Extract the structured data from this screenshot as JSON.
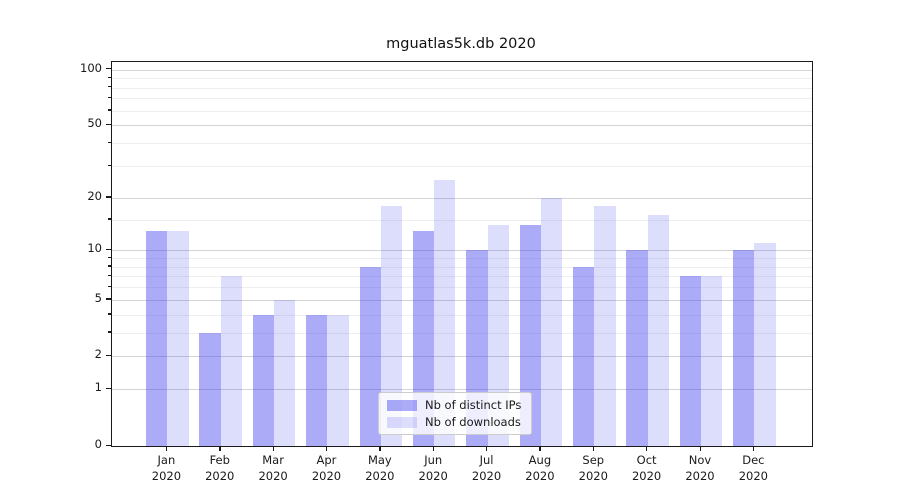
{
  "title": "mguatlas5k.db 2020",
  "chart_data": {
    "type": "bar",
    "title": "mguatlas5k.db 2020",
    "categories": [
      "Jan",
      "Feb",
      "Mar",
      "Apr",
      "May",
      "Jun",
      "Jul",
      "Aug",
      "Sep",
      "Oct",
      "Nov",
      "Dec"
    ],
    "category_year": "2020",
    "series": [
      {
        "name": "Nb of distinct IPs",
        "color": "rgba(68,68,238,0.45)",
        "values": [
          13,
          3,
          4,
          4,
          8,
          13,
          10,
          14,
          8,
          10,
          7,
          10
        ]
      },
      {
        "name": "Nb of downloads",
        "color": "rgba(68,68,238,0.18)",
        "values": [
          13,
          7,
          5,
          4,
          18,
          25,
          14,
          20,
          18,
          16,
          7,
          11
        ]
      }
    ],
    "y_axis": {
      "scale": "log1p",
      "major_ticks": [
        100,
        50,
        20,
        10,
        5,
        2,
        1,
        0
      ],
      "tick_labels": [
        "100",
        "50",
        "20",
        "10",
        "5",
        "2",
        "1",
        "0"
      ],
      "minor_ticks": [
        3,
        4,
        6,
        7,
        8,
        9,
        15,
        30,
        40,
        60,
        70,
        80,
        90
      ],
      "ylim": [
        0,
        110
      ]
    },
    "xlabel": "",
    "ylabel": "",
    "grid": "horizontal major+minor",
    "legend": {
      "position": "lower center inside",
      "entries": [
        "Nb of distinct IPs",
        "Nb of downloads"
      ]
    }
  },
  "colors": {
    "bar_dark": "rgba(68,68,238,0.45)",
    "bar_light": "rgba(68,68,238,0.18)",
    "grid_major": "#d4d4d4",
    "grid_minor": "#efefef",
    "axis": "#1a1a1a",
    "text": "#1a1a1a",
    "legend_border": "#cccccc",
    "legend_bg": "rgba(255,255,255,0.8)"
  }
}
